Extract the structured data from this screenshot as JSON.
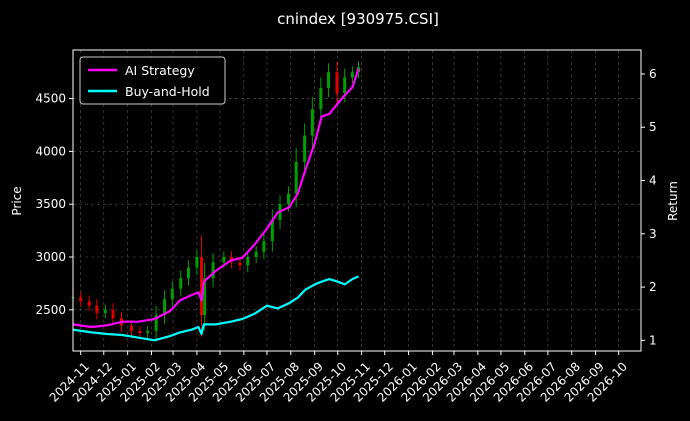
{
  "chart_data": {
    "type": "line",
    "title": "cnindex [930975.CSI]",
    "xlabel": "",
    "ylabel_left": "Price",
    "ylabel_right": "Return",
    "x_tick_labels": [
      "2024-11",
      "2024-12",
      "2025-01",
      "2025-02",
      "2025-03",
      "2025-04",
      "2025-05",
      "2025-06",
      "2025-07",
      "2025-08",
      "2025-09",
      "2025-10",
      "2025-11",
      "2025-12",
      "2026-01",
      "2026-02",
      "2026-03",
      "2026-04",
      "2026-05",
      "2026-06",
      "2026-07",
      "2026-08",
      "2026-09",
      "2026-10"
    ],
    "xlim": [
      "2024-10-22",
      "2026-10-30"
    ],
    "y_left": {
      "ticks": [
        2500,
        3000,
        3500,
        4000,
        4500
      ],
      "ylim": [
        2110,
        4960
      ]
    },
    "y_right": {
      "ticks": [
        1,
        2,
        3,
        4,
        5,
        6
      ],
      "ylim": [
        0.8,
        6.45
      ]
    },
    "grid": true,
    "legend_position": "top-left",
    "candlestick": {
      "up_color": "#00a000",
      "down_color": "#e00000",
      "dates": [
        "2024-10-22",
        "2024-11-01",
        "2024-11-12",
        "2024-11-22",
        "2024-12-03",
        "2024-12-13",
        "2024-12-24",
        "2025-01-06",
        "2025-01-17",
        "2025-01-27",
        "2025-02-07",
        "2025-02-18",
        "2025-02-28",
        "2025-03-11",
        "2025-03-21",
        "2025-04-01",
        "2025-04-07",
        "2025-04-11",
        "2025-04-22",
        "2025-05-06",
        "2025-05-16",
        "2025-05-27",
        "2025-06-06",
        "2025-06-17",
        "2025-06-27",
        "2025-07-08",
        "2025-07-18",
        "2025-07-29",
        "2025-08-08",
        "2025-08-19",
        "2025-08-29",
        "2025-09-09",
        "2025-09-19",
        "2025-09-30",
        "2025-10-10",
        "2025-10-20",
        "2025-10-28"
      ],
      "close": [
        2620,
        2580,
        2540,
        2470,
        2500,
        2420,
        2350,
        2300,
        2280,
        2300,
        2450,
        2600,
        2700,
        2800,
        2900,
        3000,
        2450,
        2800,
        2950,
        3000,
        2950,
        2920,
        3000,
        3050,
        3150,
        3350,
        3500,
        3600,
        3900,
        4150,
        4400,
        4600,
        4750,
        4550,
        4700,
        4750,
        4800
      ]
    },
    "series": [
      {
        "name": "AI Strategy",
        "color": "#ff00ff",
        "x": [
          "2024-10-22",
          "2024-11-15",
          "2024-12-05",
          "2024-12-25",
          "2025-01-15",
          "2025-02-05",
          "2025-02-25",
          "2025-03-10",
          "2025-03-25",
          "2025-04-03",
          "2025-04-07",
          "2025-04-10",
          "2025-04-25",
          "2025-05-15",
          "2025-05-30",
          "2025-06-15",
          "2025-07-01",
          "2025-07-15",
          "2025-07-30",
          "2025-08-10",
          "2025-08-20",
          "2025-09-01",
          "2025-09-10",
          "2025-09-20",
          "2025-10-01",
          "2025-10-10",
          "2025-10-20",
          "2025-10-28"
        ],
        "y": [
          1.3,
          1.25,
          1.28,
          1.35,
          1.35,
          1.4,
          1.55,
          1.75,
          1.85,
          1.9,
          1.75,
          2.1,
          2.3,
          2.5,
          2.55,
          2.8,
          3.1,
          3.4,
          3.5,
          3.75,
          4.2,
          4.7,
          5.2,
          5.25,
          5.45,
          5.6,
          5.75,
          6.1
        ]
      },
      {
        "name": "Buy-and-Hold",
        "color": "#00ffff",
        "x": [
          "2024-10-22",
          "2024-11-15",
          "2024-12-05",
          "2024-12-25",
          "2025-01-15",
          "2025-02-05",
          "2025-02-25",
          "2025-03-10",
          "2025-03-25",
          "2025-04-03",
          "2025-04-07",
          "2025-04-10",
          "2025-04-25",
          "2025-05-15",
          "2025-05-30",
          "2025-06-15",
          "2025-07-01",
          "2025-07-15",
          "2025-07-30",
          "2025-08-10",
          "2025-08-20",
          "2025-09-01",
          "2025-09-10",
          "2025-09-20",
          "2025-10-01",
          "2025-10-10",
          "2025-10-20",
          "2025-10-28"
        ],
        "y": [
          1.2,
          1.15,
          1.12,
          1.1,
          1.05,
          1.0,
          1.08,
          1.15,
          1.2,
          1.25,
          1.12,
          1.3,
          1.3,
          1.35,
          1.4,
          1.5,
          1.65,
          1.6,
          1.7,
          1.8,
          1.95,
          2.05,
          2.1,
          2.15,
          2.1,
          2.05,
          2.15,
          2.2
        ]
      }
    ]
  }
}
